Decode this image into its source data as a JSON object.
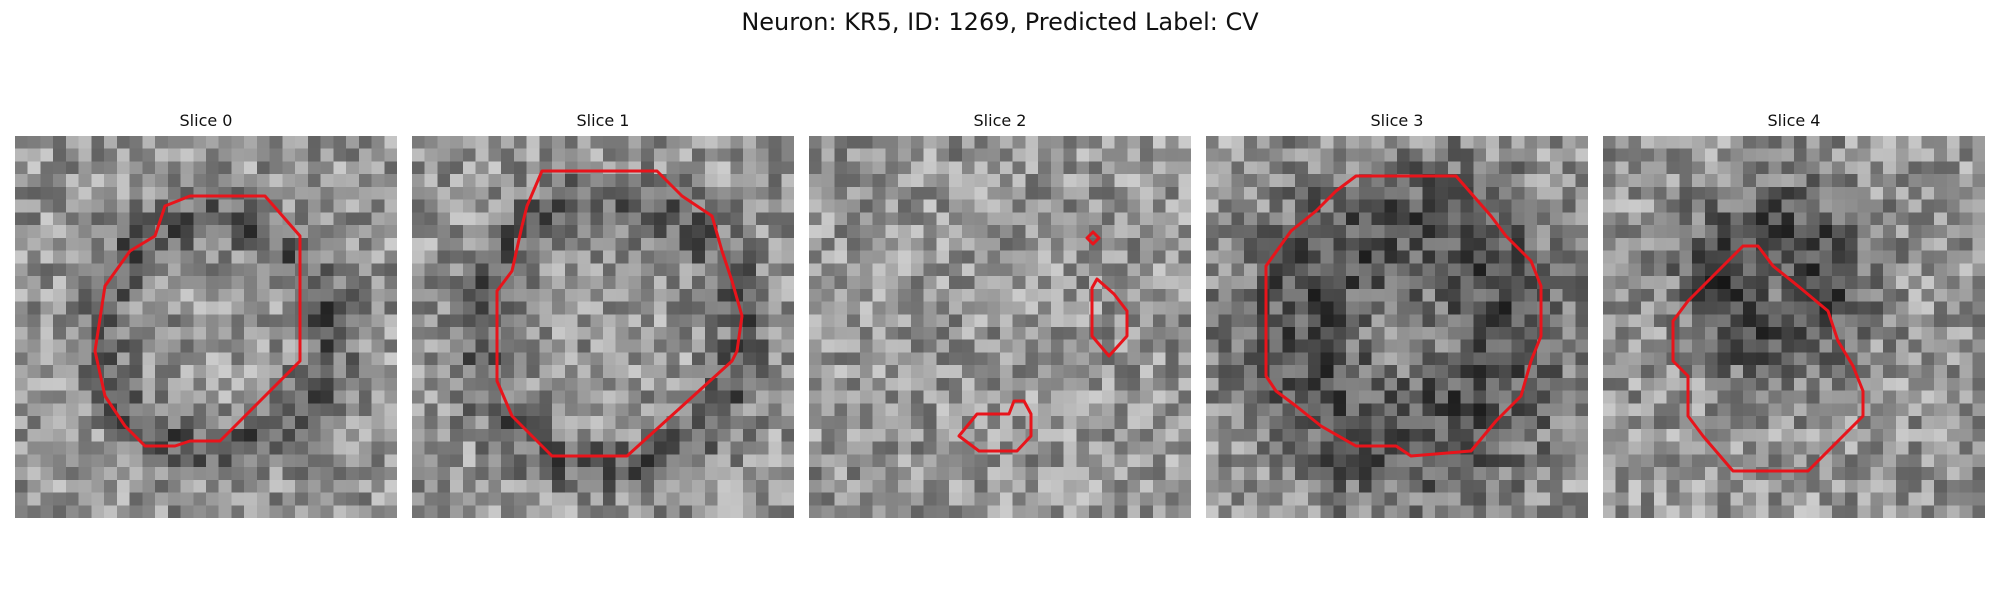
{
  "title": "Neuron: KR5, ID: 1269, Predicted Label: CV",
  "contour_color": "#e8141b",
  "panels": [
    {
      "label": "Slice 0",
      "seed": 11
    },
    {
      "label": "Slice 1",
      "seed": 23
    },
    {
      "label": "Slice 2",
      "seed": 37
    },
    {
      "label": "Slice 3",
      "seed": 41
    },
    {
      "label": "Slice 4",
      "seed": 59
    }
  ]
}
